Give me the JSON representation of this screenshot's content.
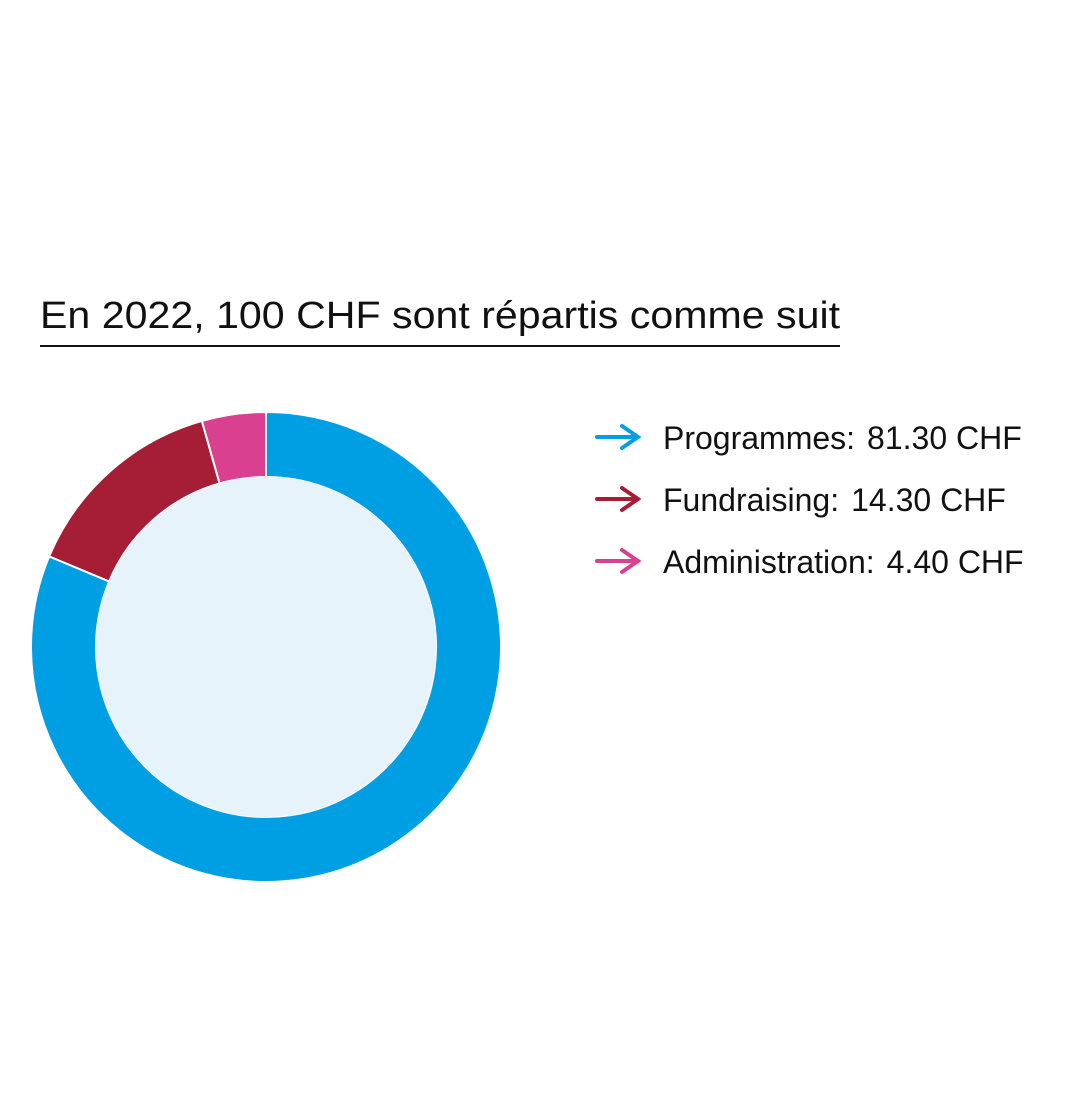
{
  "chart_data": {
    "type": "donut",
    "title": "En 2022, 100 CHF sont répartis comme suit",
    "categories": [
      "Programmes:",
      "Fundraising:",
      "Administration:"
    ],
    "values": [
      81.3,
      14.3,
      4.4
    ],
    "value_labels": [
      "81.30 CHF",
      "14.30 CHF",
      "4.40 CHF"
    ],
    "colors": [
      "#009fe3",
      "#a51e36",
      "#d9408f"
    ]
  }
}
